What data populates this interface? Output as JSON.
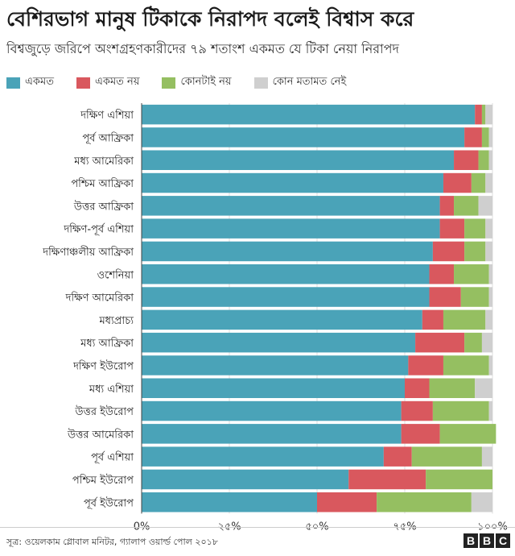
{
  "header": {
    "title": "বেশিরভাগ মানুষ টিকাকে নিরাপদ বলেই বিশ্বাস করে",
    "subtitle": "বিশ্বজুড়ে জরিপে অংশগ্রহণকারীদের ৭৯ শতাংশ একমত যে টিকা নেয়া নিরাপদ"
  },
  "legend": [
    {
      "label": "একমত",
      "color": "#4aa3b8"
    },
    {
      "label": "একমত নয়",
      "color": "#d9585e"
    },
    {
      "label": "কোনটাই নয়",
      "color": "#95bf61"
    },
    {
      "label": "কোন মতামত নেই",
      "color": "#cfcfcf"
    }
  ],
  "chart_data": {
    "type": "bar",
    "orientation": "horizontal",
    "stacked": true,
    "title": "বেশিরভাগ মানুষ টিকাকে নিরাপদ বলেই বিশ্বাস করে",
    "subtitle": "বিশ্বজুড়ে জরিপে অংশগ্রহণকারীদের ৭৯ শতাংশ একমত যে টিকা নেয়া নিরাপদ",
    "categories": [
      "দক্ষিণ এশিয়া",
      "পূর্ব আফ্রিকা",
      "মধ্য আমেরিকা",
      "পশ্চিম আফ্রিকা",
      "উত্তর আফ্রিকা",
      "দক্ষিণ-পূর্ব এশিয়া",
      "দক্ষিণাঞ্চলীয় আফ্রিকা",
      "ওশেনিয়া",
      "দক্ষিণ আমেরিকা",
      "মধ্যপ্রাচ্য",
      "মধ্য আফ্রিকা",
      "দক্ষিণ ইউরোপ",
      "মধ্য এশিয়া",
      "উত্তর ইউরোপ",
      "উত্তর আমেরিকা",
      "পূর্ব এশিয়া",
      "পশ্চিম ইউরোপ",
      "পূর্ব ইউরোপ"
    ],
    "series": [
      {
        "name": "একমত",
        "color": "#4aa3b8",
        "values": [
          95,
          92,
          89,
          86,
          85,
          85,
          83,
          82,
          82,
          80,
          78,
          76,
          75,
          74,
          74,
          69,
          59,
          50
        ]
      },
      {
        "name": "একমত নয়",
        "color": "#d9585e",
        "values": [
          2,
          5,
          7,
          8,
          4,
          7,
          9,
          7,
          9,
          6,
          14,
          10,
          7,
          9,
          11,
          8,
          22,
          17
        ]
      },
      {
        "name": "কোনটাই নয়",
        "color": "#95bf61",
        "values": [
          1,
          2,
          3,
          4,
          7,
          6,
          6,
          10,
          8,
          12,
          5,
          13,
          13,
          16,
          16,
          20,
          19,
          27
        ]
      },
      {
        "name": "কোন মতামত নেই",
        "color": "#cfcfcf",
        "values": [
          2,
          1,
          1,
          2,
          4,
          2,
          2,
          1,
          1,
          2,
          3,
          1,
          5,
          1,
          0,
          3,
          0,
          6
        ]
      }
    ],
    "xlim": [
      0,
      100
    ],
    "xticks": [
      "0%",
      "২৫%",
      "৫০%",
      "৭৫%",
      "১০০%"
    ],
    "grid": true
  },
  "footer": {
    "source": "সূত্র: ওয়েলকাম গ্লোবাল মনিটর, গ্যালাপ ওয়ার্ল্ড পোল ২০১৮",
    "logo": [
      "B",
      "B",
      "C"
    ]
  }
}
